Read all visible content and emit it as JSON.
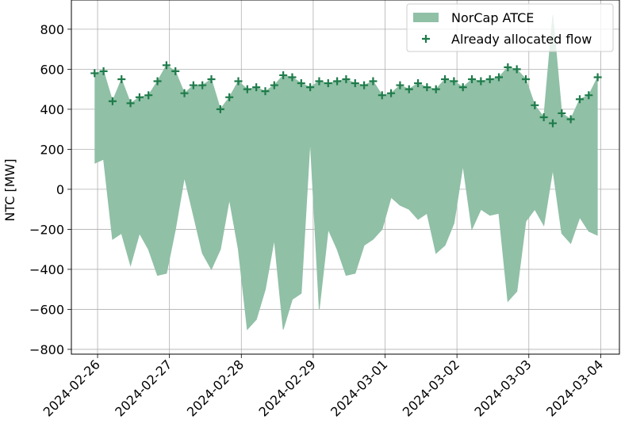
{
  "chart_data": {
    "type": "area_scatter",
    "ylabel": "NTC [MW]",
    "x": [
      "2024-02-25 23:00",
      "2024-02-26 02:00",
      "2024-02-26 05:00",
      "2024-02-26 08:00",
      "2024-02-26 11:00",
      "2024-02-26 14:00",
      "2024-02-26 17:00",
      "2024-02-26 20:00",
      "2024-02-26 23:00",
      "2024-02-27 02:00",
      "2024-02-27 05:00",
      "2024-02-27 08:00",
      "2024-02-27 11:00",
      "2024-02-27 14:00",
      "2024-02-27 17:00",
      "2024-02-27 20:00",
      "2024-02-27 23:00",
      "2024-02-28 02:00",
      "2024-02-28 05:00",
      "2024-02-28 08:00",
      "2024-02-28 11:00",
      "2024-02-28 14:00",
      "2024-02-28 17:00",
      "2024-02-28 20:00",
      "2024-02-28 23:00",
      "2024-02-29 02:00",
      "2024-02-29 05:00",
      "2024-02-29 08:00",
      "2024-02-29 11:00",
      "2024-02-29 14:00",
      "2024-02-29 17:00",
      "2024-02-29 20:00",
      "2024-02-29 23:00",
      "2024-03-01 02:00",
      "2024-03-01 05:00",
      "2024-03-01 08:00",
      "2024-03-01 11:00",
      "2024-03-01 14:00",
      "2024-03-01 17:00",
      "2024-03-01 20:00",
      "2024-03-01 23:00",
      "2024-03-02 02:00",
      "2024-03-02 05:00",
      "2024-03-02 08:00",
      "2024-03-02 11:00",
      "2024-03-02 14:00",
      "2024-03-02 17:00",
      "2024-03-02 20:00",
      "2024-03-02 23:00",
      "2024-03-03 02:00",
      "2024-03-03 05:00",
      "2024-03-03 08:00",
      "2024-03-03 11:00",
      "2024-03-03 14:00",
      "2024-03-03 17:00",
      "2024-03-03 20:00",
      "2024-03-03 23:00"
    ],
    "series": [
      {
        "name": "NorCap ATCE",
        "kind": "area",
        "color": "#90c0a6",
        "values": [
          580,
          590,
          440,
          550,
          430,
          460,
          470,
          540,
          620,
          590,
          480,
          520,
          520,
          550,
          400,
          460,
          540,
          500,
          510,
          490,
          520,
          570,
          560,
          530,
          510,
          540,
          530,
          540,
          550,
          530,
          520,
          540,
          470,
          480,
          520,
          500,
          530,
          510,
          500,
          550,
          540,
          510,
          550,
          540,
          550,
          560,
          610,
          600,
          550,
          420,
          360,
          870,
          380,
          350,
          450,
          470,
          560
        ],
        "lower": [
          130,
          150,
          -250,
          -220,
          -380,
          -220,
          -300,
          -430,
          -420,
          -200,
          60,
          -130,
          -320,
          -400,
          -300,
          -50,
          -300,
          -700,
          -650,
          -500,
          -250,
          -700,
          -550,
          -520,
          250,
          -600,
          -200,
          -300,
          -430,
          -420,
          -280,
          -250,
          -200,
          -40,
          -80,
          -100,
          -150,
          -120,
          -320,
          -280,
          -170,
          120,
          -200,
          -100,
          -130,
          -120,
          -560,
          -510,
          -160,
          -100,
          -180,
          100,
          -220,
          -270,
          -140,
          -210,
          -230
        ]
      },
      {
        "name": "Already allocated flow",
        "kind": "scatter",
        "color": "#1e7b4a",
        "values": [
          580,
          590,
          440,
          550,
          430,
          460,
          470,
          540,
          620,
          590,
          480,
          520,
          520,
          550,
          400,
          460,
          540,
          500,
          510,
          490,
          520,
          570,
          560,
          530,
          510,
          540,
          530,
          540,
          550,
          530,
          520,
          540,
          470,
          480,
          520,
          500,
          530,
          510,
          500,
          550,
          540,
          510,
          550,
          540,
          550,
          560,
          610,
          600,
          550,
          420,
          360,
          330,
          380,
          350,
          450,
          470,
          560
        ]
      }
    ],
    "xlim": [
      "2024-02-25 15:15",
      "2024-03-04 06:15"
    ],
    "xticks": [
      "2024-02-26",
      "2024-02-27",
      "2024-02-28",
      "2024-02-29",
      "2024-03-01",
      "2024-03-02",
      "2024-03-03",
      "2024-03-04"
    ],
    "ylim": [
      -824,
      946
    ],
    "yticks": [
      {
        "value": -800,
        "label": "−800"
      },
      {
        "value": -600,
        "label": "−600"
      },
      {
        "value": -400,
        "label": "−400"
      },
      {
        "value": -200,
        "label": "−200"
      },
      0,
      200,
      400,
      600,
      800
    ],
    "grid": true,
    "legend": "upper right"
  }
}
